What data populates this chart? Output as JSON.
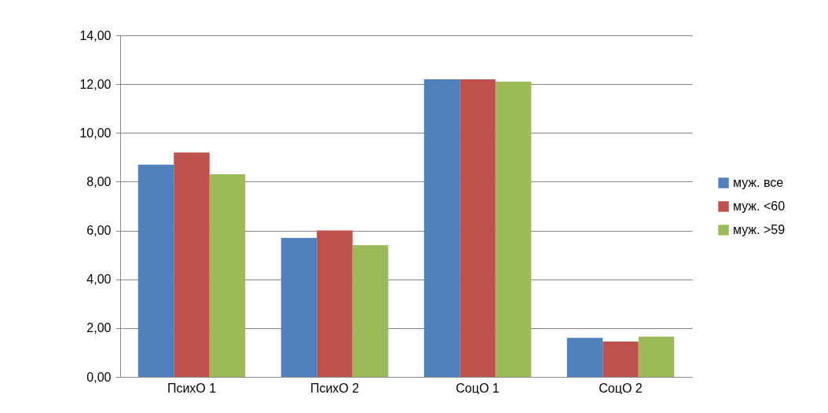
{
  "chart_data": {
    "type": "bar",
    "categories": [
      "ПсихО 1",
      "ПсихО 2",
      "СоцО 1",
      "СоцО 2"
    ],
    "series": [
      {
        "name": "муж. все",
        "color": "#4f81bd",
        "values": [
          8.7,
          5.7,
          12.2,
          1.6
        ]
      },
      {
        "name": "муж. <60",
        "color": "#c0504d",
        "values": [
          9.2,
          6.0,
          12.2,
          1.45
        ]
      },
      {
        "name": "муж. >59",
        "color": "#9bbb59",
        "values": [
          8.3,
          5.4,
          12.1,
          1.65
        ]
      }
    ],
    "ylim": [
      0,
      14
    ],
    "yticks": [
      {
        "value": 0,
        "label": "0,00"
      },
      {
        "value": 2,
        "label": "2,00"
      },
      {
        "value": 4,
        "label": "4,00"
      },
      {
        "value": 6,
        "label": "6,00"
      },
      {
        "value": 8,
        "label": "8,00"
      },
      {
        "value": 10,
        "label": "10,00"
      },
      {
        "value": 12,
        "label": "12,00"
      },
      {
        "value": 14,
        "label": "14,00"
      }
    ],
    "grid": "y",
    "legend": "right"
  }
}
